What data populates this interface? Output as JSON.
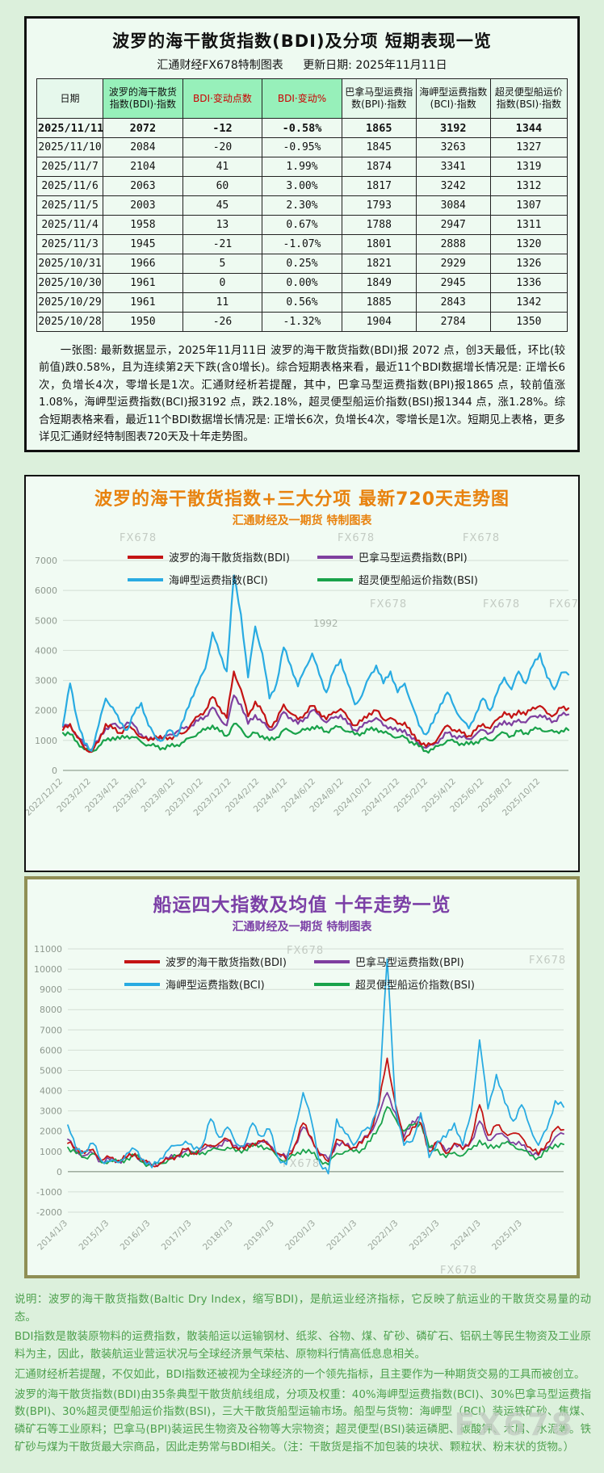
{
  "page": {
    "watermark": "FX678"
  },
  "colors": {
    "bdi_red": "#c41414",
    "bpi_purple": "#7f3f9f",
    "bci_blue": "#29abe2",
    "bsi_green": "#19a24a",
    "table_header_green": "#97f0ba",
    "title_orange": "#e8820e",
    "title_purple": "#7b3fa6",
    "note_green": "#4da04d",
    "panel_olive_border": "#8f8f55"
  },
  "table_section": {
    "title": "波罗的海干散货指数(BDI)及分项 短期表现一览",
    "subtitle_left": "汇通财经FX678特制图表",
    "subtitle_right": "更新日期: 2025年11月11日",
    "headers": [
      {
        "label": "日期",
        "highlight": false,
        "red": false
      },
      {
        "label": "波罗的海干散货指数(BDI)·指数",
        "highlight": true,
        "red": false
      },
      {
        "label": "BDI·变动点数",
        "highlight": true,
        "red": true
      },
      {
        "label": "BDI·变动%",
        "highlight": true,
        "red": true
      },
      {
        "label": "巴拿马型运费指数(BPI)·指数",
        "highlight": false,
        "red": false
      },
      {
        "label": "海岬型运费指数(BCI)·指数",
        "highlight": false,
        "red": false
      },
      {
        "label": "超灵便型船运价指数(BSI)·指数",
        "highlight": false,
        "red": false
      }
    ],
    "rows": [
      [
        "2025/11/11",
        "2072",
        "-12",
        "-0.58%",
        "1865",
        "3192",
        "1344"
      ],
      [
        "2025/11/10",
        "2084",
        "-20",
        "-0.95%",
        "1845",
        "3263",
        "1327"
      ],
      [
        "2025/11/7",
        "2104",
        "41",
        "1.99%",
        "1874",
        "3341",
        "1319"
      ],
      [
        "2025/11/6",
        "2063",
        "60",
        "3.00%",
        "1817",
        "3242",
        "1312"
      ],
      [
        "2025/11/5",
        "2003",
        "45",
        "2.30%",
        "1793",
        "3084",
        "1307"
      ],
      [
        "2025/11/4",
        "1958",
        "13",
        "0.67%",
        "1788",
        "2947",
        "1311"
      ],
      [
        "2025/11/3",
        "1945",
        "-21",
        "-1.07%",
        "1801",
        "2888",
        "1320"
      ],
      [
        "2025/10/31",
        "1966",
        "5",
        "0.25%",
        "1821",
        "2929",
        "1326"
      ],
      [
        "2025/10/30",
        "1961",
        "0",
        "0.00%",
        "1849",
        "2945",
        "1336"
      ],
      [
        "2025/10/29",
        "1961",
        "11",
        "0.56%",
        "1885",
        "2843",
        "1342"
      ],
      [
        "2025/10/28",
        "1950",
        "-26",
        "-1.32%",
        "1904",
        "2784",
        "1350"
      ]
    ],
    "summary": "一张图: 最新数据显示，2025年11月11日 波罗的海干散货指数(BDI)报 2072 点，创3天最低，环比(较前值)跌0.58%，且为连续第2天下跌(含0增长)。综合短期表格来看，最近11个BDI数据增长情况是: 正增长6次，负增长4次，零增长是1次。汇通财经析若提醒，其中，巴拿马型运费指数(BPI)报1865 点，较前值涨1.08%，海岬型运费指数(BCI)报3192 点，跌2.18%，超灵便型船运价指数(BSI)报1344 点，涨1.28%。综合短期表格来看，最近11个BDI数据增长情况是: 正增长6次，负增长4次，零增长是1次。短期见上表格，更多详见汇通财经特制图表720天及十年走势图。"
  },
  "chart_data": [
    {
      "type": "line",
      "title": "波罗的海干散货指数+三大分项  最新720天走势图",
      "subtitle": "汇通财经及一期货 特制图表",
      "ylim": [
        0,
        7000
      ],
      "ytick_step": 1000,
      "grid": true,
      "legend_position": "top",
      "annotation": "1992",
      "x_labels": [
        "2022/12/12",
        "2023/2/12",
        "2023/4/12",
        "2023/6/12",
        "2023/8/12",
        "2023/10/12",
        "2023/12/12",
        "2024/2/12",
        "2024/4/12",
        "2024/6/12",
        "2024/8/12",
        "2024/10/12",
        "2024/12/12",
        "2025/2/12",
        "2025/4/12",
        "2025/6/12",
        "2025/8/12",
        "2025/10/12"
      ],
      "series": [
        {
          "name": "波罗的海干散货指数(BDI)",
          "color": "#c41414",
          "values": [
            1350,
            1550,
            1100,
            750,
            620,
            950,
            1550,
            1400,
            1250,
            1450,
            1350,
            1100,
            1000,
            1150,
            1050,
            1100,
            1150,
            1250,
            1550,
            1800,
            2000,
            2450,
            2100,
            1750,
            3300,
            2700,
            1800,
            2300,
            1950,
            1450,
            1650,
            2200,
            1900,
            1700,
            1900,
            2150,
            1950,
            1700,
            1950,
            2050,
            1750,
            1500,
            1650,
            1900,
            2000,
            1700,
            1750,
            1550,
            1600,
            1200,
            1000,
            800,
            900,
            1200,
            1500,
            1350,
            1250,
            1150,
            1350,
            1550,
            1400,
            1700,
            1950,
            1750,
            2000,
            1850,
            2100,
            2150,
            1900,
            1850,
            2084,
            2072
          ]
        },
        {
          "name": "巴拿马型运费指数(BPI)",
          "color": "#7f3f9f",
          "values": [
            1450,
            1500,
            1150,
            850,
            700,
            1000,
            1400,
            1550,
            1400,
            1600,
            1500,
            1200,
            1000,
            1100,
            1050,
            1200,
            1300,
            1400,
            1500,
            1650,
            1800,
            2100,
            1750,
            1500,
            2500,
            2200,
            1550,
            1850,
            1600,
            1350,
            1500,
            1950,
            1750,
            1550,
            1750,
            2000,
            1850,
            1600,
            1750,
            1850,
            1550,
            1350,
            1450,
            1650,
            1750,
            1500,
            1450,
            1300,
            1350,
            1050,
            900,
            750,
            850,
            1050,
            1250,
            1150,
            1100,
            1050,
            1200,
            1350,
            1250,
            1450,
            1650,
            1500,
            1700,
            1600,
            1800,
            1850,
            1700,
            1650,
            1845,
            1865
          ]
        },
        {
          "name": "海岬型运费指数(BCI)",
          "color": "#29abe2",
          "values": [
            1500,
            2900,
            1700,
            900,
            650,
            1500,
            2400,
            2100,
            1600,
            1350,
            1900,
            2250,
            1500,
            1100,
            1000,
            1350,
            1150,
            1700,
            2400,
            2900,
            3400,
            4600,
            3900,
            3300,
            6500,
            5200,
            3100,
            4800,
            3900,
            2400,
            2900,
            4100,
            3500,
            2800,
            3400,
            3900,
            3200,
            2600,
            3300,
            3700,
            2900,
            2200,
            2500,
            3100,
            3500,
            2900,
            3300,
            2600,
            2900,
            2200,
            1500,
            1200,
            1600,
            2200,
            2600,
            2100,
            1700,
            1400,
            1900,
            2400,
            2000,
            2600,
            3100,
            2700,
            3300,
            2900,
            3500,
            3900,
            3100,
            2700,
            3263,
            3192
          ]
        },
        {
          "name": "超灵便型船运价指数(BSI)",
          "color": "#19a24a",
          "values": [
            1250,
            1200,
            950,
            700,
            620,
            800,
            1000,
            1100,
            1050,
            1150,
            1100,
            950,
            850,
            800,
            750,
            800,
            850,
            950,
            1100,
            1250,
            1350,
            1500,
            1300,
            1150,
            1550,
            1400,
            1100,
            1250,
            1150,
            1000,
            1100,
            1350,
            1300,
            1250,
            1350,
            1450,
            1400,
            1300,
            1400,
            1450,
            1300,
            1200,
            1250,
            1350,
            1400,
            1250,
            1200,
            1100,
            1100,
            950,
            800,
            650,
            700,
            850,
            1000,
            950,
            900,
            870,
            950,
            1050,
            1000,
            1150,
            1250,
            1150,
            1300,
            1250,
            1350,
            1400,
            1300,
            1280,
            1327,
            1344
          ]
        }
      ]
    },
    {
      "type": "line",
      "title": "船运四大指数及均值 十年走势一览",
      "subtitle": "汇通财经及一期货 特制图表",
      "ylim": [
        -2000,
        11000
      ],
      "ytick_step": 1000,
      "grid": true,
      "legend_position": "top",
      "x_labels": [
        "2014/1/3",
        "2015/1/3",
        "2016/1/3",
        "2017/1/3",
        "2018/1/3",
        "2019/1/3",
        "2020/1/3",
        "2021/1/3",
        "2022/1/3",
        "2023/1/3",
        "2024/1/3",
        "2025/1/3"
      ],
      "series": [
        {
          "name": "波罗的海干散货指数(BDI)",
          "color": "#c41414",
          "values": [
            1400,
            1200,
            900,
            1100,
            550,
            700,
            560,
            700,
            900,
            500,
            300,
            400,
            600,
            800,
            1100,
            900,
            1200,
            1300,
            1400,
            1600,
            1200,
            1100,
            1400,
            1500,
            1300,
            900,
            600,
            1300,
            2400,
            1700,
            800,
            500,
            1600,
            1300,
            1200,
            1400,
            2000,
            3300,
            5600,
            3300,
            1500,
            2200,
            2400,
            1000,
            1500,
            900,
            1400,
            1100,
            1600,
            3300,
            1800,
            2300,
            1900,
            1900,
            1700,
            1200,
            850,
            1400,
            2100,
            2072
          ]
        },
        {
          "name": "巴拿马型运费指数(BPI)",
          "color": "#7f3f9f",
          "values": [
            1600,
            1000,
            800,
            900,
            500,
            600,
            500,
            700,
            800,
            500,
            300,
            450,
            650,
            800,
            1000,
            950,
            1100,
            1200,
            1300,
            1500,
            1300,
            1200,
            1400,
            1500,
            1300,
            900,
            700,
            1300,
            2200,
            1600,
            900,
            600,
            1400,
            1300,
            1200,
            1500,
            1900,
            2800,
            3900,
            2900,
            1700,
            2500,
            2700,
            1200,
            1500,
            1000,
            1400,
            1100,
            1500,
            2500,
            1550,
            1850,
            1750,
            1450,
            1300,
            1000,
            800,
            1200,
            1700,
            1865
          ]
        },
        {
          "name": "海岬型运费指数(BCI)",
          "color": "#29abe2",
          "values": [
            2300,
            1100,
            1000,
            1400,
            550,
            500,
            450,
            900,
            1100,
            600,
            200,
            650,
            1100,
            1300,
            1500,
            1100,
            1300,
            2600,
            1700,
            2200,
            1400,
            1300,
            2400,
            1750,
            2100,
            700,
            350,
            2100,
            3900,
            2500,
            400,
            -100,
            2600,
            1900,
            1300,
            2000,
            2100,
            3500,
            10500,
            3200,
            1300,
            1500,
            2900,
            700,
            1500,
            1700,
            2400,
            1300,
            2900,
            6500,
            3100,
            4800,
            3400,
            2500,
            3300,
            2200,
            1300,
            2100,
            3500,
            3192
          ]
        },
        {
          "name": "超灵便型船运价指数(BSI)",
          "color": "#19a24a",
          "values": [
            1200,
            900,
            700,
            900,
            450,
            550,
            450,
            650,
            800,
            450,
            300,
            400,
            600,
            750,
            900,
            850,
            950,
            1050,
            1100,
            1200,
            1000,
            1100,
            1250,
            1300,
            1100,
            700,
            550,
            800,
            1100,
            900,
            600,
            350,
            900,
            1000,
            1000,
            1100,
            1500,
            2200,
            3200,
            2600,
            2000,
            2300,
            2400,
            1200,
            1100,
            700,
            950,
            800,
            1100,
            1550,
            1150,
            1300,
            1400,
            1300,
            1100,
            800,
            700,
            1000,
            1350,
            1344
          ]
        }
      ]
    }
  ],
  "footer_notes": {
    "paragraphs": [
      "说明：波罗的海干散货指数(Baltic Dry Index，缩写BDI)，是航运业经济指标，它反映了航运业的干散货交易量的动态。",
      "BDI指数是散装原物料的运费指数，散装船运以运输钢材、纸浆、谷物、煤、矿砂、磷矿石、铝矾土等民生物资及工业原料为主，因此，散装航运业营运状况与全球经济景气荣枯、原物料行情高低息息相关。",
      "汇通财经析若提醒，不仅如此，BDI指数还被视为全球经济的一个领先指标，且主要作为一种期货交易的工具而被创立。",
      "波罗的海干散货指数(BDI)由35条典型干散货航线组成，分项及权重：40%海岬型运费指数(BCI)、30%巴拿马型运费指数(BPI)、30%超灵便型船运价指数(BSI)，三大干散货船型运输市场。船型与货物：海岬型（BCI）装运铁矿砂、焦煤、磷矿石等工业原料；巴拿马(BPI)装运民生物资及谷物等大宗物资；超灵便型(BSI)装运磷肥、碳酸钾、木屑、水泥等。铁矿砂与煤为干散货最大宗商品，因此走势常与BDI相关。（注：干散货是指不加包装的块状、颗粒状、粉末状的货物。）"
    ]
  }
}
